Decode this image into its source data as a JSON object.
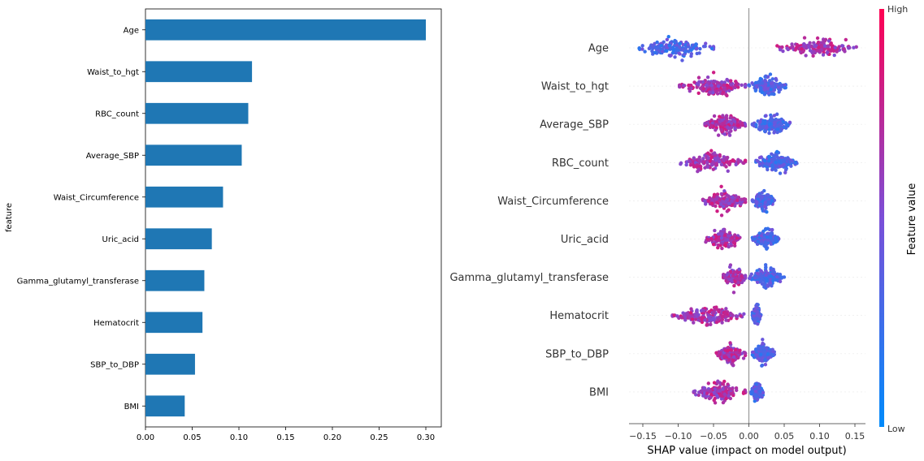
{
  "chart_data": [
    {
      "type": "bar",
      "orientation": "horizontal",
      "categories": [
        "Age",
        "Waist_to_hgt",
        "RBC_count",
        "Average_SBP",
        "Waist_Circumference",
        "Uric_acid",
        "Gamma_glutamyl_transferase",
        "Hematocrit",
        "SBP_to_DBP",
        "BMI"
      ],
      "values": [
        0.3,
        0.114,
        0.11,
        0.103,
        0.083,
        0.071,
        0.063,
        0.061,
        0.053,
        0.042
      ],
      "ylabel": "feature",
      "xlabel": "",
      "xlim": [
        0.0,
        0.315
      ],
      "xticks": [
        "0.00",
        "0.05",
        "0.10",
        "0.15",
        "0.20",
        "0.25",
        "0.30"
      ],
      "bar_color": "#1f77b4",
      "grid": false
    },
    {
      "type": "scatter",
      "subtype": "beeswarm",
      "categories": [
        "Age",
        "Waist_to_hgt",
        "Average_SBP",
        "RBC_count",
        "Waist_Circumference",
        "Uric_acid",
        "Gamma_glutamyl_transferase",
        "Hematocrit",
        "SBP_to_DBP",
        "BMI"
      ],
      "series": [
        {
          "feature": "Age",
          "low_range": [
            -0.155,
            -0.05
          ],
          "high_range": [
            0.04,
            0.152
          ],
          "center": 0.0
        },
        {
          "feature": "Waist_to_hgt",
          "low_range": [
            -0.098,
            -0.005
          ],
          "high_range": [
            0.0,
            0.052
          ],
          "center": 0.0
        },
        {
          "feature": "Average_SBP",
          "low_range": [
            -0.062,
            -0.005
          ],
          "high_range": [
            0.005,
            0.058
          ],
          "center": 0.0
        },
        {
          "feature": "RBC_count",
          "low_range": [
            -0.097,
            -0.005
          ],
          "high_range": [
            0.01,
            0.068
          ],
          "center": 0.0
        },
        {
          "feature": "Waist_Circumference",
          "low_range": [
            -0.065,
            -0.005
          ],
          "high_range": [
            0.005,
            0.036
          ],
          "center": 0.0
        },
        {
          "feature": "Uric_acid",
          "low_range": [
            -0.062,
            -0.01
          ],
          "high_range": [
            0.005,
            0.042
          ],
          "center": 0.0
        },
        {
          "feature": "Gamma_glutamyl_transferase",
          "low_range": [
            -0.036,
            -0.005
          ],
          "high_range": [
            0.0,
            0.05
          ],
          "center": 0.0
        },
        {
          "feature": "Hematocrit",
          "low_range": [
            -0.108,
            -0.005
          ],
          "high_range": [
            0.005,
            0.017
          ],
          "center": 0.0
        },
        {
          "feature": "SBP_to_DBP",
          "low_range": [
            -0.048,
            -0.005
          ],
          "high_range": [
            0.005,
            0.036
          ],
          "center": 0.0
        },
        {
          "feature": "BMI",
          "low_range": [
            -0.078,
            -0.005
          ],
          "high_range": [
            0.003,
            0.02
          ],
          "center": 0.0
        }
      ],
      "xlabel": "SHAP value (impact on model output)",
      "xlim": [
        -0.17,
        0.165
      ],
      "xticks": [
        "−0.15",
        "−0.10",
        "−0.05",
        "0.00",
        "0.05",
        "0.10",
        "0.15"
      ],
      "colorbar": {
        "high": "High",
        "low": "Low",
        "title": "Feature value",
        "high_color": "#ff0052",
        "low_color": "#008bfb"
      }
    }
  ]
}
